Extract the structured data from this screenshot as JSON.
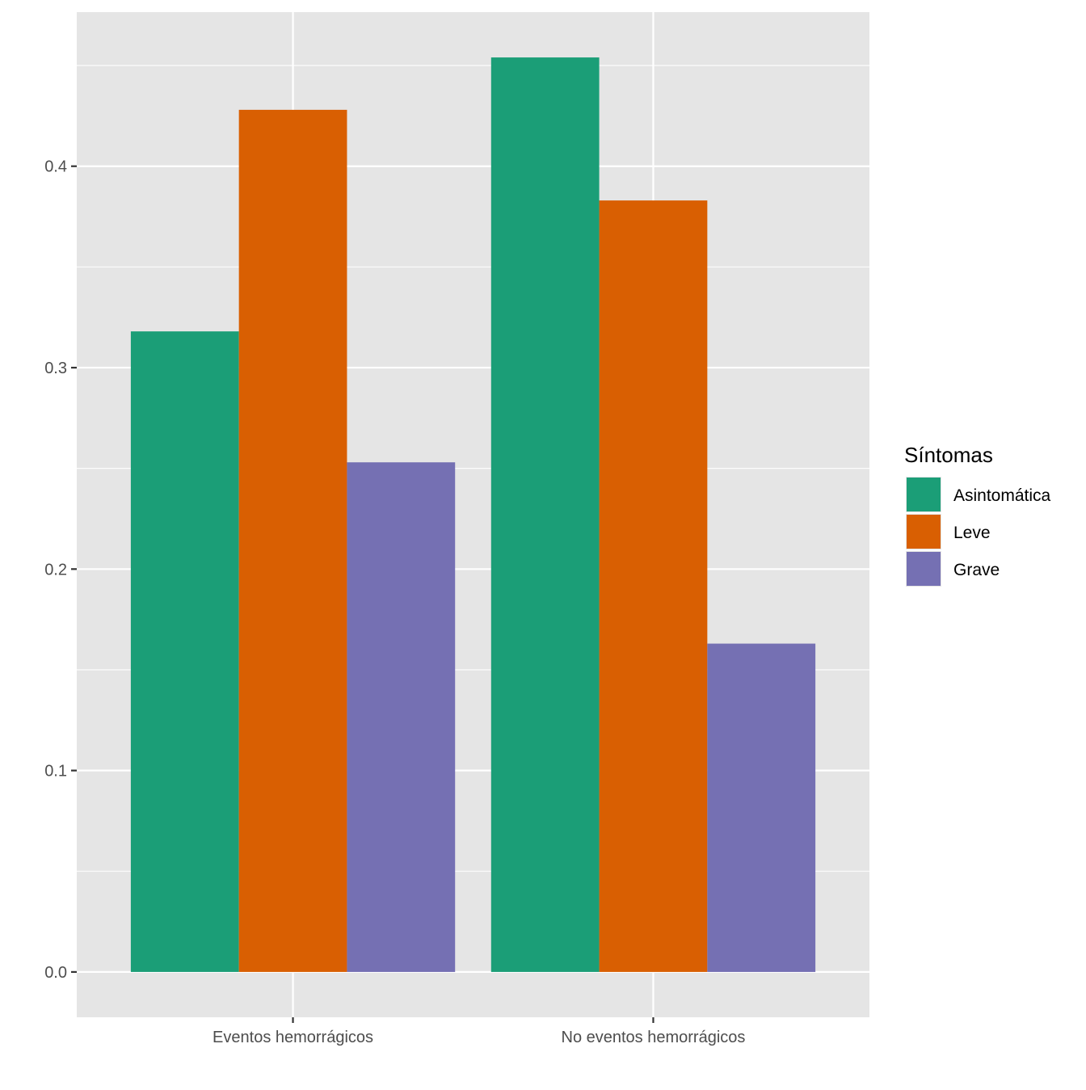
{
  "chart_data": {
    "type": "bar",
    "categories": [
      "Eventos hemorrágicos",
      "No eventos hemorrágicos"
    ],
    "series": [
      {
        "name": "Asintomática",
        "values": [
          0.318,
          0.454
        ],
        "color": "#1B9E77"
      },
      {
        "name": "Leve",
        "values": [
          0.428,
          0.383
        ],
        "color": "#D95F02"
      },
      {
        "name": "Grave",
        "values": [
          0.253,
          0.163
        ],
        "color": "#7570B3"
      }
    ],
    "title": "",
    "xlabel": "",
    "ylabel": "",
    "ylim": [
      -0.0225,
      0.4765
    ],
    "y_ticks": [
      "0.0",
      "0.1",
      "0.2",
      "0.3",
      "0.4"
    ],
    "y_tick_values": [
      0,
      0.1,
      0.2,
      0.3,
      0.4
    ],
    "grid": true,
    "legend": {
      "title": "Síntomas",
      "position": "right"
    },
    "panel_background": "#E5E5E5",
    "grid_color": "#FFFFFF"
  }
}
